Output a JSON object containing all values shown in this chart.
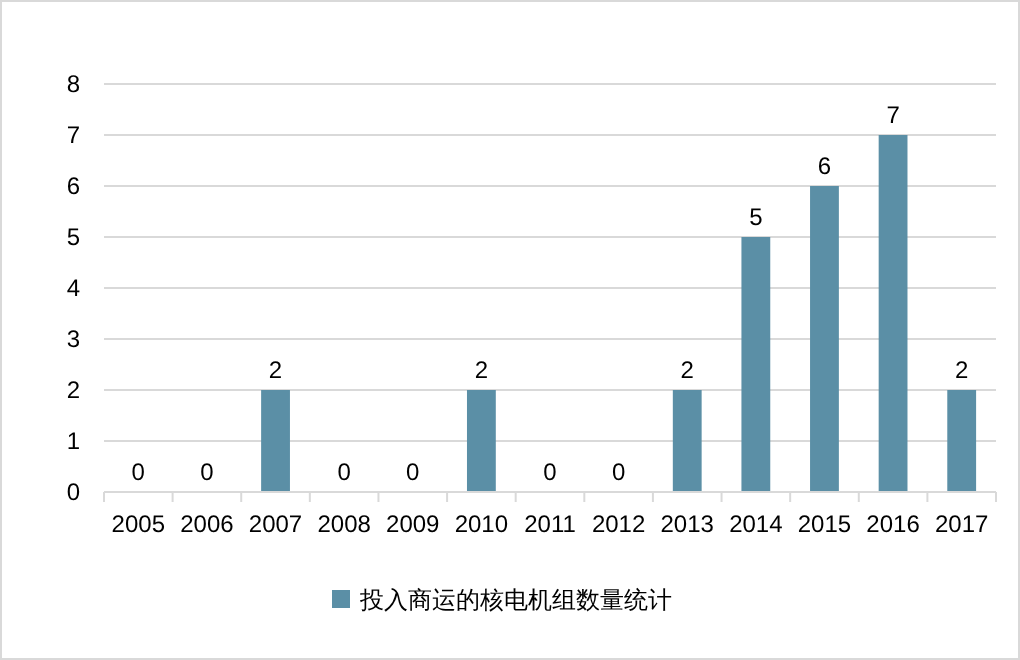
{
  "chart_data": {
    "type": "bar",
    "categories": [
      "2005",
      "2006",
      "2007",
      "2008",
      "2009",
      "2010",
      "2011",
      "2012",
      "2013",
      "2014",
      "2015",
      "2016",
      "2017"
    ],
    "series": [
      {
        "name": "投入商运的核电机组数量统计",
        "color": "#5b8fa6",
        "values": [
          0,
          0,
          2,
          0,
          0,
          2,
          0,
          0,
          2,
          5,
          6,
          7,
          2
        ]
      }
    ],
    "ylim": [
      0,
      8
    ],
    "yticks": [
      0,
      1,
      2,
      3,
      4,
      5,
      6,
      7,
      8
    ],
    "grid": "y",
    "legend": "bottom",
    "data_labels": true
  }
}
